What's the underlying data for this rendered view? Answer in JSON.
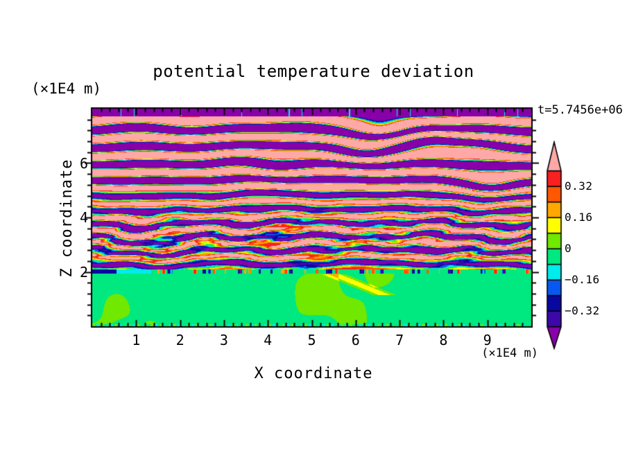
{
  "chart_data": {
    "type": "heatmap",
    "title": "potential temperature deviation",
    "xlabel": "X coordinate",
    "ylabel": "Z coordinate",
    "x_unit": "(×1E4 m)",
    "y_unit": "(×1E4 m)",
    "time_annotation": "t=5.7456e+06",
    "xlim": [
      0,
      10
    ],
    "ylim": [
      0,
      8
    ],
    "x_major_ticks": [
      1,
      2,
      3,
      4,
      5,
      6,
      7,
      8,
      9
    ],
    "x_minor_step": 0.2,
    "y_major_ticks": [
      2,
      4,
      6
    ],
    "y_minor_step": 0.4,
    "tick_style": "x ticks point inward from top and bottom edges; z ticks point outward from left and right edges",
    "grid": false,
    "colorbar": {
      "orientation": "vertical",
      "arrow_ends": true,
      "level_step": 0.08,
      "levels": [
        -0.4,
        -0.32,
        -0.24,
        -0.16,
        -0.08,
        0,
        0.08,
        0.16,
        0.24,
        0.32,
        0.4
      ],
      "colors_low_to_high": [
        "#8800A8",
        "#3C08A8",
        "#0808A0",
        "#0858F0",
        "#00ECEC",
        "#00E880",
        "#70E800",
        "#FFFF00",
        "#FFA800",
        "#FF5800",
        "#F82020",
        "#FFA8A8"
      ],
      "labeled_levels": [
        {
          "value": 0.32,
          "text": "0.32"
        },
        {
          "value": 0.16,
          "text": "0.16"
        },
        {
          "value": 0,
          "text": "0"
        },
        {
          "value": -0.16,
          "text": "−0.16"
        },
        {
          "value": -0.32,
          "text": "−0.32"
        }
      ]
    },
    "field_summary": [
      {
        "z_range": [
          0,
          2
        ],
        "description": "near-surface layer: uniform weakly negative deviation (spring green) with swirling weakly positive blobs (chartreuse); thin multicolor speckle line at z=2 and at the bottom edge"
      },
      {
        "z_range": [
          2,
          4.8
        ],
        "description": "turbulent mixed zone: wavy pink/purple bands broken by elongated red, orange, yellow, cyan, blue and navy filaments"
      },
      {
        "z_range": [
          4.8,
          8
        ],
        "description": "stratified gravity-wave zone: regular horizontal stripes saturating beyond ±0.4 (pink / purple) with thin rainbow transition edges, occasional stripe-merging defects, solid purple band at the very top"
      }
    ],
    "render": {
      "top_band_z": 7.73,
      "bottom_layer_z": 1.93,
      "speck_band": [
        1.93,
        2.1
      ],
      "stripe_period": 0.5,
      "stripe_period_growth": 0.055,
      "stripe_amp_upper": 1.1,
      "stripe_amp_mid": 0.62,
      "phase_offset": 1.2,
      "turb_center_z": 3.3,
      "turb_width_z": 1.15,
      "turb_amp": 0.2,
      "mean_shift_below_z": 3.0,
      "mean_shift_rate": 0.1,
      "blob_threshold": 1.05,
      "defects": [
        [
          6.6,
          7.25,
          3.0
        ],
        [
          7.75,
          6.85,
          -2.5
        ],
        [
          6.2,
          6.4,
          2.2
        ],
        [
          4.15,
          5.8,
          1.6
        ],
        [
          9.1,
          5.15,
          2.4
        ],
        [
          8.7,
          6.6,
          -1.8
        ],
        [
          2.35,
          7.4,
          0.9
        ],
        [
          5.1,
          7.05,
          0.8
        ],
        [
          3.3,
          6.1,
          -0.7
        ],
        [
          1.3,
          3.0,
          1.5
        ]
      ],
      "streak": {
        "x_at_top": 5.5,
        "slope": 1.5,
        "z_top": 1.92,
        "z_bot": 1.15,
        "amp": 0.17
      },
      "left_edge_streaks": [
        {
          "x_range": [
            0,
            0.55
          ],
          "value": -0.28
        },
        {
          "x_range": [
            0.55,
            1.35
          ],
          "value": -0.12
        }
      ]
    }
  }
}
